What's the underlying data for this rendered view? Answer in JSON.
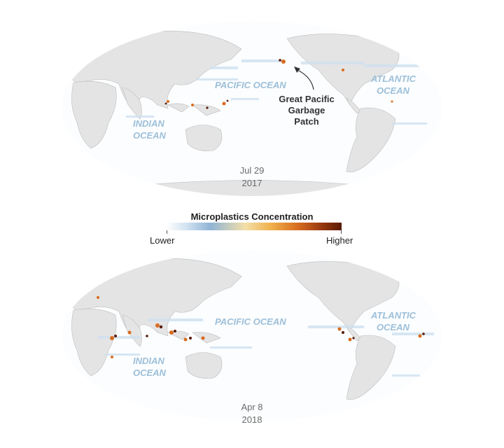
{
  "maps": [
    {
      "ocean_labels": {
        "pacific": "PACIFIC OCEAN",
        "atlantic_1": "ATLANTIC",
        "atlantic_2": "OCEAN",
        "indian_1": "INDIAN",
        "indian_2": "OCEAN"
      },
      "date_line1": "Jul 29",
      "date_line2": "2017",
      "callout": [
        "Great Pacific",
        "Garbage",
        "Patch"
      ]
    },
    {
      "ocean_labels": {
        "pacific": "PACIFIC OCEAN",
        "atlantic_1": "ATLANTIC",
        "atlantic_2": "OCEAN",
        "indian_1": "INDIAN",
        "indian_2": "OCEAN"
      },
      "date_line1": "Apr 8",
      "date_line2": "2018"
    }
  ],
  "legend": {
    "title": "Microplastics Concentration",
    "lower": "Lower",
    "higher": "Higher"
  },
  "colors": {
    "land": "#e6e6e6",
    "ocean_text": "#9dbfd8",
    "low": "#8fb4d6",
    "mid": "#efb04b",
    "high": "#5a1a05"
  }
}
